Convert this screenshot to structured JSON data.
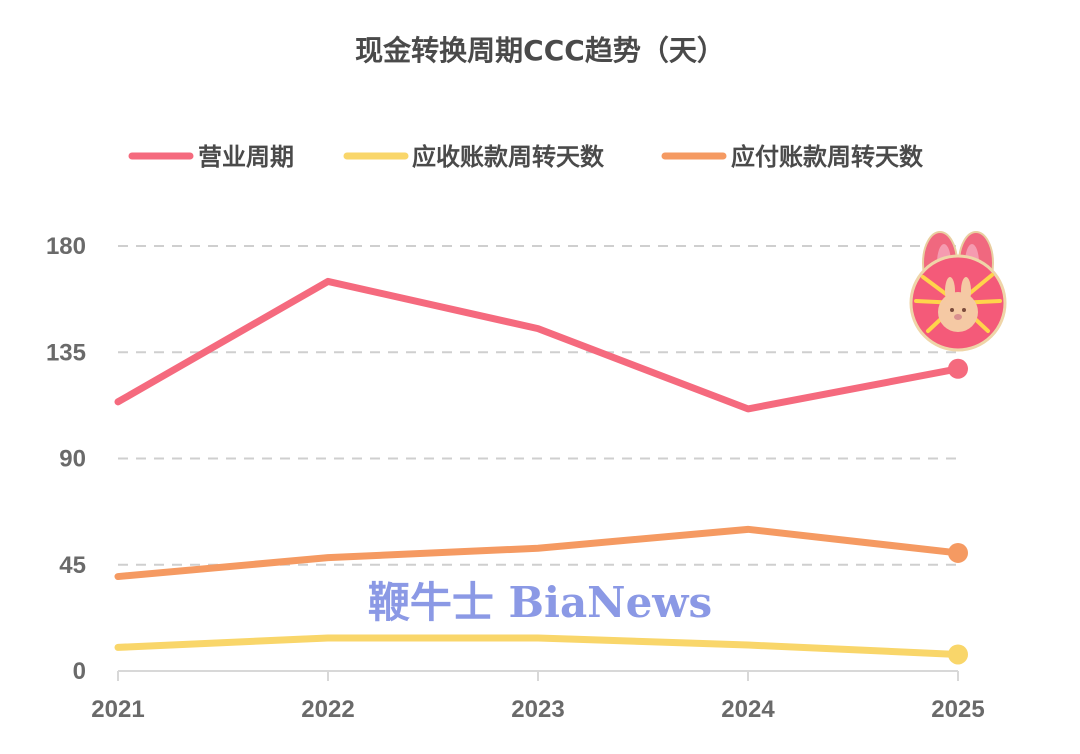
{
  "chart_data": {
    "type": "line",
    "title": "现金转换周期CCC趋势（天）",
    "categories": [
      "2021",
      "2022",
      "2023",
      "2024",
      "2025"
    ],
    "series": [
      {
        "name": "营业周期",
        "values": [
          114,
          165,
          145,
          111,
          128
        ],
        "color": "#f56a7e"
      },
      {
        "name": "应收账款周转天数",
        "values": [
          10,
          14,
          14,
          11,
          7
        ],
        "color": "#f9d66a"
      },
      {
        "name": "应付账款周转天数",
        "values": [
          40,
          48,
          52,
          60,
          50
        ],
        "color": "#f59a62"
      }
    ],
    "yticks": [
      0,
      45,
      90,
      135,
      180
    ],
    "ylim": [
      0,
      180
    ],
    "grid": true,
    "legend_position": "top-center"
  },
  "watermark": {
    "text": "鞭牛士 BiaNews",
    "color": "#7f8fe3"
  },
  "decoration": {
    "icon": "rabbit-sticker-icon"
  }
}
